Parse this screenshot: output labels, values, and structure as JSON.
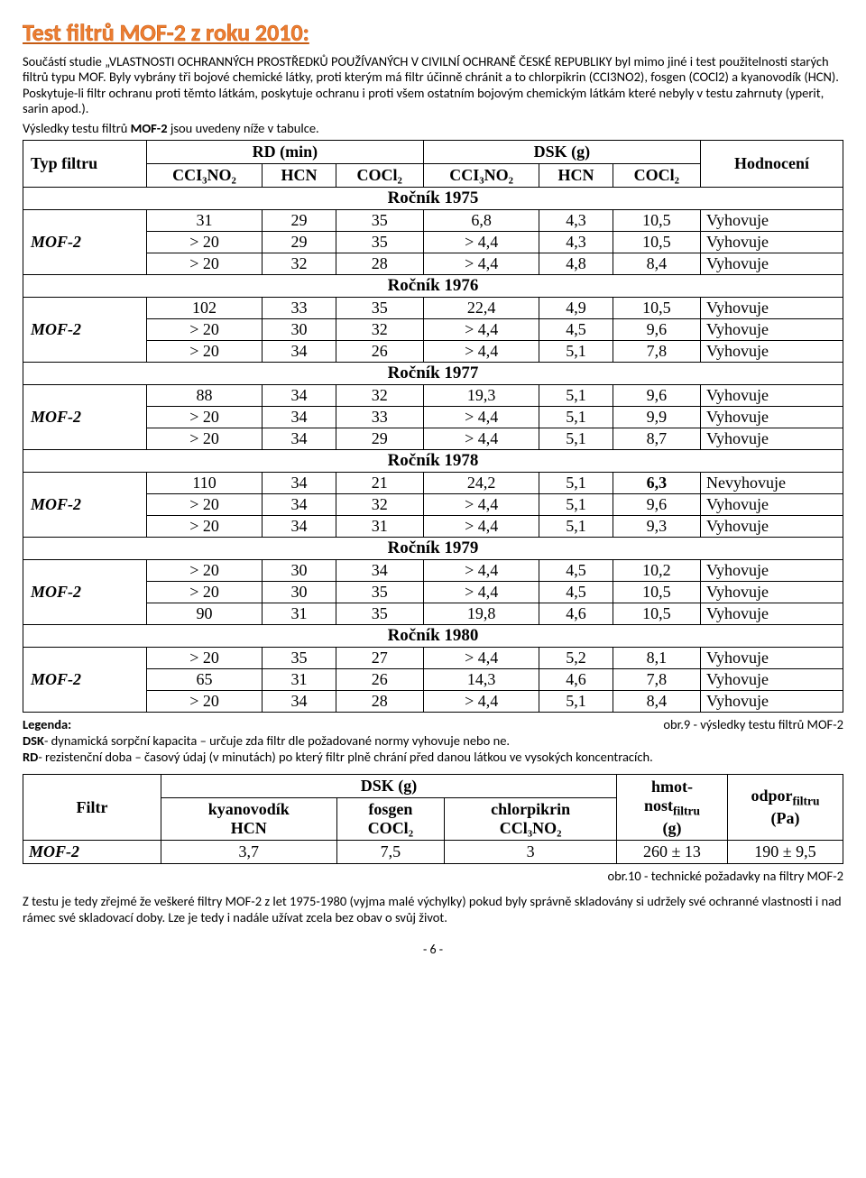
{
  "title": "Test filtrů MOF-2 z roku 2010:",
  "intro": {
    "p1": "Součástí studie „VLASTNOSTI OCHRANNÝCH PROSTŘEDKŮ POUŽÍVANÝCH V CIVILNÍ OCHRANĚ ČESKÉ REPUBLIKY byl mimo jiné i test použitelnosti starých filtrů typu MOF. Byly vybrány tři bojové chemické látky, proti kterým má filtr účinně chránit a to chlorpikrin (CCI3NO2), fosgen (COCl2) a kyanovodík (HCN). Poskytuje-li filtr ochranu proti těmto látkám, poskytuje ochranu i proti všem ostatním bojovým chemickým látkám které nebyly v testu zahrnuty (yperit, sarin apod.).",
    "p2a": "Výsledky testu filtrů ",
    "p2b": "MOF-2",
    "p2c": " jsou uvedeny níže v tabulce."
  },
  "t1": {
    "h_typ": "Typ filtru",
    "h_rd": "RD (min)",
    "h_dsk": "DSK (g)",
    "h_hod": "Hodnocení",
    "sub1": "CCI₃NO₂",
    "sub2": "HCN",
    "sub3": "COCl₂",
    "sub4": "CCI₃NO₂",
    "sub5": "HCN",
    "sub6": "COCl₂",
    "label": "MOF-2",
    "years": [
      {
        "yr": "Ročník 1975",
        "rows": [
          [
            "31",
            "29",
            "35",
            "6,8",
            "4,3",
            "10,5",
            "Vyhovuje"
          ],
          [
            "> 20",
            "29",
            "35",
            "> 4,4",
            "4,3",
            "10,5",
            "Vyhovuje"
          ],
          [
            "> 20",
            "32",
            "28",
            "> 4,4",
            "4,8",
            "8,4",
            "Vyhovuje"
          ]
        ]
      },
      {
        "yr": "Ročník 1976",
        "rows": [
          [
            "102",
            "33",
            "35",
            "22,4",
            "4,9",
            "10,5",
            "Vyhovuje"
          ],
          [
            "> 20",
            "30",
            "32",
            "> 4,4",
            "4,5",
            "9,6",
            "Vyhovuje"
          ],
          [
            "> 20",
            "34",
            "26",
            "> 4,4",
            "5,1",
            "7,8",
            "Vyhovuje"
          ]
        ]
      },
      {
        "yr": "Ročník 1977",
        "rows": [
          [
            "88",
            "34",
            "32",
            "19,3",
            "5,1",
            "9,6",
            "Vyhovuje"
          ],
          [
            "> 20",
            "34",
            "33",
            "> 4,4",
            "5,1",
            "9,9",
            "Vyhovuje"
          ],
          [
            "> 20",
            "34",
            "29",
            "> 4,4",
            "5,1",
            "8,7",
            "Vyhovuje"
          ]
        ]
      },
      {
        "yr": "Ročník 1978",
        "rows": [
          [
            "110",
            "34",
            "21",
            "24,2",
            "5,1",
            "6,3",
            "Nevyhovuje"
          ],
          [
            "> 20",
            "34",
            "32",
            "> 4,4",
            "5,1",
            "9,6",
            "Vyhovuje"
          ],
          [
            "> 20",
            "34",
            "31",
            "> 4,4",
            "5,1",
            "9,3",
            "Vyhovuje"
          ]
        ]
      },
      {
        "yr": "Ročník 1979",
        "rows": [
          [
            "> 20",
            "30",
            "34",
            "> 4,4",
            "4,5",
            "10,2",
            "Vyhovuje"
          ],
          [
            "> 20",
            "30",
            "35",
            "> 4,4",
            "4,5",
            "10,5",
            "Vyhovuje"
          ],
          [
            "90",
            "31",
            "35",
            "19,8",
            "4,6",
            "10,5",
            "Vyhovuje"
          ]
        ]
      },
      {
        "yr": "Ročník 1980",
        "rows": [
          [
            "> 20",
            "35",
            "27",
            "> 4,4",
            "5,2",
            "8,1",
            "Vyhovuje"
          ],
          [
            "65",
            "31",
            "26",
            "14,3",
            "4,6",
            "7,8",
            "Vyhovuje"
          ],
          [
            "> 20",
            "34",
            "28",
            "> 4,4",
            "5,1",
            "8,4",
            "Vyhovuje"
          ]
        ]
      }
    ]
  },
  "legenda": {
    "label": "Legenda:",
    "right": "obr.9 - výsledky testu filtrů MOF-2",
    "l1a": "DSK",
    "l1b": "- dynamická sorpční kapacita – určuje zda filtr dle požadované normy vyhovuje nebo ne.",
    "l2a": "RD",
    "l2b": "- rezistenční doba – časový údaj (v minutách) po který filtr plně chrání před danou látkou ve vysokých koncentracích."
  },
  "t2": {
    "h_filtr": "Filtr",
    "h_dsk": "DSK (g)",
    "h_hmot1": "hmot-",
    "h_hmot2": "nost",
    "h_hmot3": "filtru",
    "h_hmot4": "(g)",
    "h_odpor1": "odpor",
    "h_odpor2": "filtru",
    "h_odpor3": "(Pa)",
    "c1a": "kyanovodík",
    "c1b": "HCN",
    "c2a": "fosgen",
    "c2b": "COCl₂",
    "c3a": "chlorpikrin",
    "c3b": "CCl₃NO₂",
    "row": [
      "MOF-2",
      "3,7",
      "7,5",
      "3",
      "260 ± 13",
      "190 ± 9,5"
    ]
  },
  "caption2": "obr.10 - technické požadavky na filtry MOF-2",
  "footer": "Z testu je tedy zřejmé že veškeré filtry MOF-2 z let 1975-1980 (vyjma malé výchylky) pokud byly správně skladovány si udržely své ochranné vlastnosti i nad rámec své skladovací doby. Lze je tedy i nadále užívat zcela bez obav o svůj život.",
  "page": "- 6 -",
  "bold_cell": {
    "year": 3,
    "row": 0,
    "col": 5
  }
}
